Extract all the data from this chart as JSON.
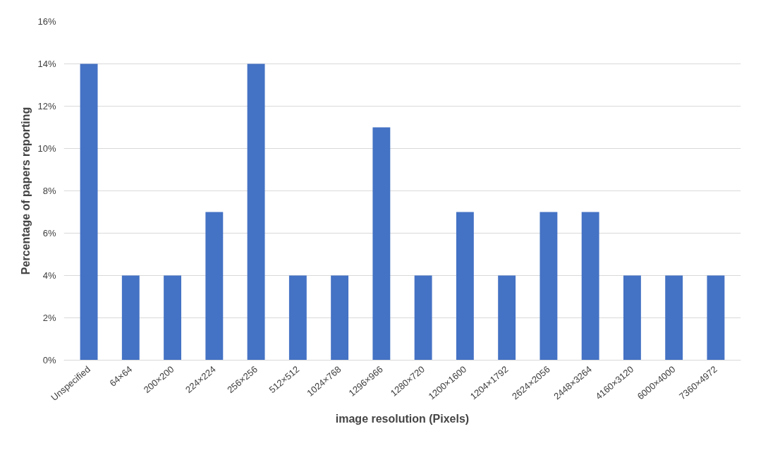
{
  "chart_data": {
    "type": "bar",
    "xlabel": "image resolution (Pixels)",
    "ylabel": "Percentage of papers reporting",
    "categories": [
      "Unspecified",
      "64×64",
      "200×200",
      "224×224",
      "256×256",
      "512×512",
      "1024×768",
      "1296×966",
      "1280×720",
      "1200×1600",
      "1204×1792",
      "2624×2056",
      "2448×3264",
      "4160×3120",
      "6000×4000",
      "7360×4972"
    ],
    "values": [
      14,
      4,
      4,
      7,
      14,
      4,
      4,
      11,
      4,
      7,
      4,
      7,
      7,
      4,
      4,
      4
    ],
    "color": "#4472c4",
    "ylim": [
      0,
      16
    ],
    "yticks": [
      {
        "value": 0,
        "label": "0%"
      },
      {
        "value": 2,
        "label": "2%"
      },
      {
        "value": 4,
        "label": "4%"
      },
      {
        "value": 6,
        "label": "6%"
      },
      {
        "value": 8,
        "label": "8%"
      },
      {
        "value": 10,
        "label": "10%"
      },
      {
        "value": 12,
        "label": "12%"
      },
      {
        "value": 14,
        "label": "14%"
      },
      {
        "value": 16,
        "label": "16%"
      }
    ],
    "grid": "y"
  }
}
